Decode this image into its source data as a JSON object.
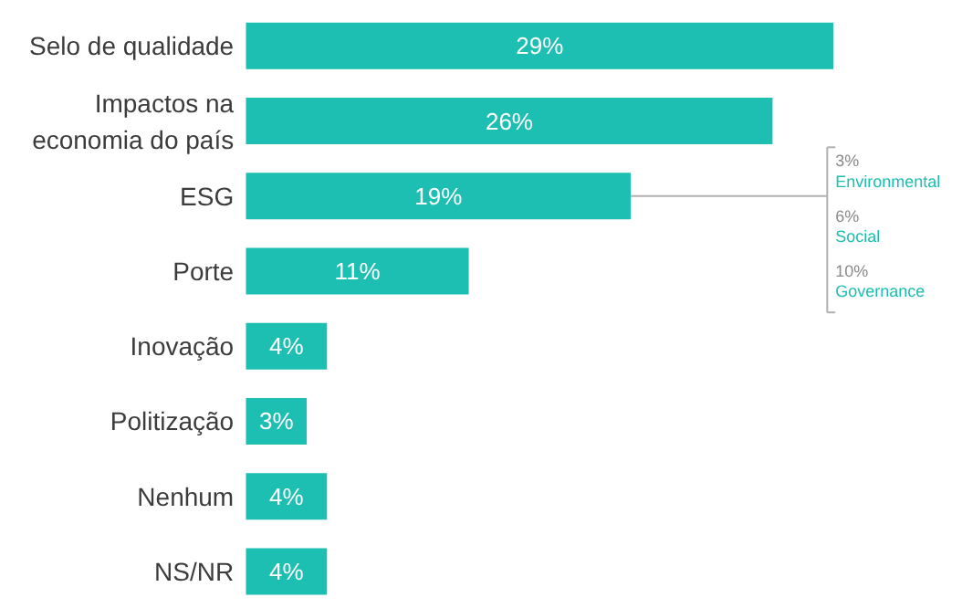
{
  "chart_data": {
    "type": "bar",
    "orientation": "horizontal",
    "categories": [
      "Selo de qualidade",
      "Impactos na economia do país",
      "ESG",
      "Porte",
      "Inovação",
      "Politização",
      "Nenhum",
      "NS/NR"
    ],
    "values": [
      29,
      26,
      19,
      11,
      4,
      3,
      4,
      4
    ],
    "color": "#1cbfb1",
    "value_labels": [
      "29%",
      "26%",
      "19%",
      "11%",
      "4%",
      "3%",
      "4%",
      "4%"
    ],
    "annotations": [
      "3%\nEnvironmental",
      "6%\nSocial",
      "10%\nGovernance"
    ]
  }
}
